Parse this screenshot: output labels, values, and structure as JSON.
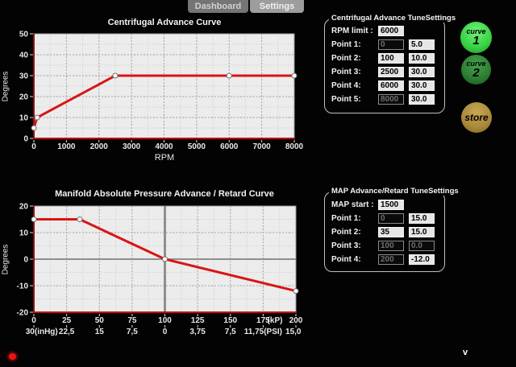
{
  "tabs": [
    {
      "label": "Dashboard",
      "active": false
    },
    {
      "label": "Settings",
      "active": true
    }
  ],
  "chart_data": [
    {
      "type": "line",
      "title": "Centrifugal Advance Curve",
      "xlabel": "RPM",
      "ylabel": "Degrees",
      "xlim": [
        0,
        8000
      ],
      "ylim": [
        0,
        50
      ],
      "xticks": [
        0,
        1000,
        2000,
        3000,
        4000,
        5000,
        6000,
        7000,
        8000
      ],
      "yticks": [
        0,
        10,
        20,
        30,
        40,
        50
      ],
      "x_minor_step": 500,
      "y_minor_step": 5,
      "grid": true,
      "xlabels_row1": [
        {
          "x": 0,
          "t": "0"
        },
        {
          "x": 1000,
          "t": "1000"
        },
        {
          "x": 2000,
          "t": "2000"
        },
        {
          "x": 3000,
          "t": "3000"
        },
        {
          "x": 4000,
          "t": "4000"
        },
        {
          "x": 5000,
          "t": "5000"
        },
        {
          "x": 6000,
          "t": "6000"
        },
        {
          "x": 7000,
          "t": "7000"
        },
        {
          "x": 8000,
          "t": "8000"
        }
      ],
      "series": [
        {
          "name": "centrifugal-advance",
          "color": "#d91414",
          "points": [
            [
              0,
              5
            ],
            [
              100,
              10
            ],
            [
              2500,
              30
            ],
            [
              6000,
              30
            ],
            [
              8000,
              30
            ]
          ]
        }
      ]
    },
    {
      "type": "line",
      "title": "Manifold Absolute Pressure Advance / Retard Curve",
      "xlabel": "",
      "ylabel": "Degrees",
      "xlim": [
        0,
        200
      ],
      "ylim": [
        -20,
        20
      ],
      "xticks": [
        0,
        25,
        50,
        75,
        100,
        125,
        150,
        175,
        200
      ],
      "yticks": [
        -20,
        -10,
        0,
        10,
        20
      ],
      "x_minor_step": 12.5,
      "y_minor_step": 5,
      "grid": true,
      "ref_vline_x": 100,
      "ref_hline_y": 0,
      "xlabels_row1": [
        {
          "x": 0,
          "t": "0"
        },
        {
          "x": 25,
          "t": "25"
        },
        {
          "x": 50,
          "t": "50"
        },
        {
          "x": 75,
          "t": "75"
        },
        {
          "x": 100,
          "t": "100"
        },
        {
          "x": 125,
          "t": "125"
        },
        {
          "x": 150,
          "t": "150"
        },
        {
          "x": 175,
          "t": "175"
        },
        {
          "x": 184,
          "t": "(kP)"
        },
        {
          "x": 200,
          "t": "200"
        }
      ],
      "xlabels_row2": [
        {
          "x": 6,
          "t": "30(inHg)"
        },
        {
          "x": 25,
          "t": "22,5"
        },
        {
          "x": 50,
          "t": "15"
        },
        {
          "x": 75,
          "t": "7,5"
        },
        {
          "x": 100,
          "t": "0"
        },
        {
          "x": 125,
          "t": "3,75"
        },
        {
          "x": 150,
          "t": "7,5"
        },
        {
          "x": 175,
          "t": "11,75(PSI)"
        },
        {
          "x": 198,
          "t": "15,0"
        }
      ],
      "series": [
        {
          "name": "map-advance-retard",
          "color": "#d91414",
          "points": [
            [
              0,
              15
            ],
            [
              35,
              15
            ],
            [
              100,
              0
            ],
            [
              200,
              -12
            ]
          ]
        }
      ]
    }
  ],
  "panels": {
    "centrifugal": {
      "title": "Centrifugal Advance TuneSettings",
      "rows": [
        {
          "label": "RPM limit :",
          "inputs": [
            {
              "value": "6000",
              "enabled": true
            }
          ]
        },
        {
          "label": "Point 1:",
          "inputs": [
            {
              "value": "0",
              "enabled": false
            },
            {
              "value": "5.0",
              "enabled": true
            }
          ]
        },
        {
          "label": "Point 2:",
          "inputs": [
            {
              "value": "100",
              "enabled": true
            },
            {
              "value": "10.0",
              "enabled": true
            }
          ]
        },
        {
          "label": "Point 3:",
          "inputs": [
            {
              "value": "2500",
              "enabled": true
            },
            {
              "value": "30.0",
              "enabled": true
            }
          ]
        },
        {
          "label": "Point 4:",
          "inputs": [
            {
              "value": "6000",
              "enabled": true
            },
            {
              "value": "30.0",
              "enabled": true
            }
          ]
        },
        {
          "label": "Point 5:",
          "inputs": [
            {
              "value": "8000",
              "enabled": false
            },
            {
              "value": "30.0",
              "enabled": true
            }
          ]
        }
      ]
    },
    "map": {
      "title": "MAP Advance/Retard TuneSettings",
      "rows": [
        {
          "label": "MAP start :",
          "inputs": [
            {
              "value": "1500",
              "enabled": true
            }
          ]
        },
        {
          "label": "Point 1:",
          "inputs": [
            {
              "value": "0",
              "enabled": false
            },
            {
              "value": "15.0",
              "enabled": true
            }
          ]
        },
        {
          "label": "Point 2:",
          "inputs": [
            {
              "value": "35",
              "enabled": true
            },
            {
              "value": "15.0",
              "enabled": true
            }
          ]
        },
        {
          "label": "Point 3:",
          "inputs": [
            {
              "value": "100",
              "enabled": false
            },
            {
              "value": "0.0",
              "enabled": false
            }
          ]
        },
        {
          "label": "Point 4:",
          "inputs": [
            {
              "value": "200",
              "enabled": false
            },
            {
              "value": "-12.0",
              "enabled": true
            }
          ]
        }
      ]
    }
  },
  "buttons": [
    {
      "id": "curve-1",
      "line1": "curve",
      "line2": "1",
      "color": "#36d341",
      "color_light": "#72ef7c",
      "color_dark": "#1c9427"
    },
    {
      "id": "curve-2",
      "line1": "curve",
      "line2": "2",
      "color": "#2b7d31",
      "color_light": "#46a24d",
      "color_dark": "#1a4f1e"
    },
    {
      "id": "store",
      "line1": "store",
      "line2": "",
      "color": "#a8883a",
      "color_light": "#c7a851",
      "color_dark": "#7a6124"
    }
  ],
  "status": {
    "led_color": "#ee1212",
    "version_label": "v"
  },
  "colors": {
    "plot_bg": "#ececec",
    "axis_bottom": "#cc0000",
    "axis_left": "#8a1414",
    "curve": "#d91414",
    "reference_line": "#8f8f8f"
  }
}
